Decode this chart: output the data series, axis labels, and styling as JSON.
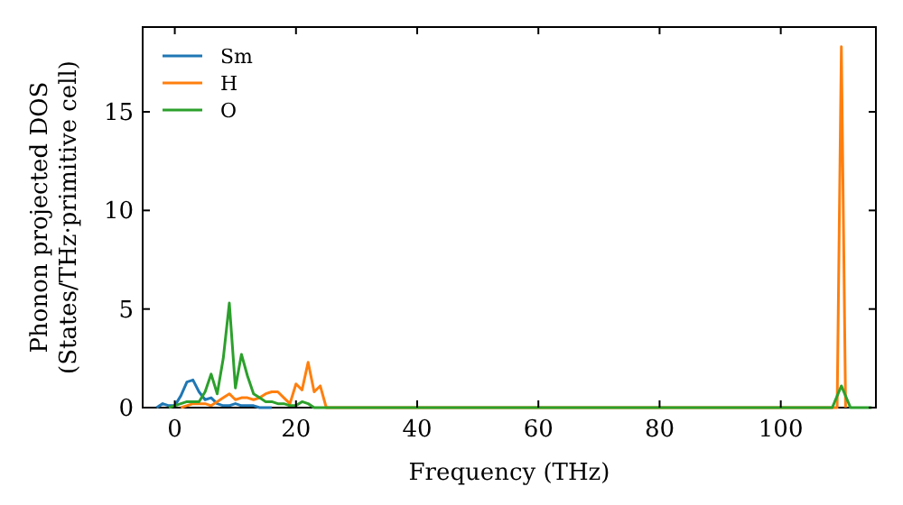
{
  "chart_data": {
    "type": "line",
    "xlabel": "Frequency (THz)",
    "ylabel": "Phonon projected DOS\n(States/THz·primitive cell)",
    "series": [
      {
        "name": "Sm",
        "color": "#1f77b4",
        "x": [
          -3,
          -2,
          -1,
          0,
          1,
          2,
          3,
          4,
          5,
          6,
          7,
          8,
          9,
          10,
          11,
          12,
          13,
          14,
          15,
          16
        ],
        "values": [
          0,
          0.2,
          0.1,
          0.1,
          0.6,
          1.3,
          1.4,
          0.8,
          0.4,
          0.5,
          0.2,
          0.1,
          0.1,
          0.2,
          0.1,
          0.1,
          0.1,
          0,
          0,
          0
        ]
      },
      {
        "name": "H",
        "color": "#ff7f0e",
        "x": [
          1,
          2,
          3,
          4,
          5,
          6,
          7,
          8,
          9,
          10,
          11,
          12,
          13,
          14,
          15,
          16,
          17,
          18,
          19,
          20,
          21,
          22,
          23,
          24,
          25,
          109.3,
          110,
          110.7
        ],
        "values": [
          0,
          0.1,
          0.2,
          0.2,
          0.2,
          0.1,
          0.3,
          0.5,
          0.7,
          0.4,
          0.5,
          0.5,
          0.4,
          0.5,
          0.7,
          0.8,
          0.8,
          0.5,
          0.2,
          1.2,
          0.9,
          2.3,
          0.8,
          1.1,
          0,
          0,
          18.3,
          0
        ]
      },
      {
        "name": "O",
        "color": "#2ca02c",
        "x": [
          -1,
          0,
          1,
          2,
          3,
          4,
          5,
          6,
          7,
          8,
          9,
          10,
          11,
          12,
          13,
          14,
          15,
          16,
          17,
          18,
          19,
          20,
          21,
          22,
          23,
          24,
          30,
          40,
          60,
          80,
          100,
          108.5,
          110,
          111.5,
          115
        ],
        "values": [
          0,
          0.1,
          0.2,
          0.3,
          0.3,
          0.3,
          0.8,
          1.7,
          0.7,
          2.5,
          5.3,
          1.0,
          2.7,
          1.6,
          0.7,
          0.5,
          0.3,
          0.3,
          0.2,
          0.2,
          0.1,
          0.1,
          0.3,
          0.2,
          0,
          0,
          0,
          0,
          0,
          0,
          0,
          0,
          1.1,
          0,
          0
        ]
      }
    ],
    "xlim": [
      -5.3,
      115.7
    ],
    "ylim": [
      0,
      19.3
    ],
    "xticks": [
      0,
      20,
      40,
      60,
      80,
      100
    ],
    "yticks": [
      0,
      5,
      10,
      15
    ],
    "legend": "top left",
    "grid": false
  }
}
